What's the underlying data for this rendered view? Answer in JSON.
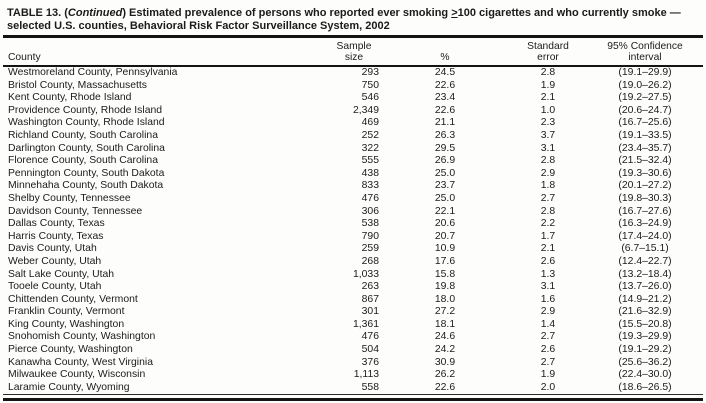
{
  "title": {
    "p1": "TABLE 13. (",
    "continued": "Continued",
    "p2": ") Estimated prevalence of persons who reported ever smoking ",
    "gte": ">",
    "p3": "100 cigarettes and who currently smoke —",
    "line2": "selected U.S. counties, Behavioral Risk Factor Surveillance System, 2002"
  },
  "table": {
    "headers": {
      "county": "County",
      "sample": [
        "Sample",
        "size"
      ],
      "pct": "%",
      "se": [
        "Standard",
        "error"
      ],
      "ci": [
        "95% Confidence",
        "interval"
      ]
    },
    "rows": [
      {
        "county": "Westmoreland County, Pennsylvania",
        "n": "293",
        "pct": "24.5",
        "se": "2.8",
        "ci": "(19.1–29.9)"
      },
      {
        "county": "Bristol County, Massachusetts",
        "n": "750",
        "pct": "22.6",
        "se": "1.9",
        "ci": "(19.0–26.2)"
      },
      {
        "county": "Kent County, Rhode Island",
        "n": "546",
        "pct": "23.4",
        "se": "2.1",
        "ci": "(19.2–27.5)"
      },
      {
        "county": "Providence County, Rhode Island",
        "n": "2,349",
        "pct": "22.6",
        "se": "1.0",
        "ci": "(20.6–24.7)"
      },
      {
        "county": "Washington County, Rhode Island",
        "n": "469",
        "pct": "21.1",
        "se": "2.3",
        "ci": "(16.7–25.6)"
      },
      {
        "county": "Richland County, South Carolina",
        "n": "252",
        "pct": "26.3",
        "se": "3.7",
        "ci": "(19.1–33.5)"
      },
      {
        "county": "Darlington County, South Carolina",
        "n": "322",
        "pct": "29.5",
        "se": "3.1",
        "ci": "(23.4–35.7)"
      },
      {
        "county": "Florence County, South Carolina",
        "n": "555",
        "pct": "26.9",
        "se": "2.8",
        "ci": "(21.5–32.4)"
      },
      {
        "county": "Pennington County, South Dakota",
        "n": "438",
        "pct": "25.0",
        "se": "2.9",
        "ci": "(19.3–30.6)"
      },
      {
        "county": "Minnehaha County, South Dakota",
        "n": "833",
        "pct": "23.7",
        "se": "1.8",
        "ci": "(20.1–27.2)"
      },
      {
        "county": "Shelby County, Tennessee",
        "n": "476",
        "pct": "25.0",
        "se": "2.7",
        "ci": "(19.8–30.3)"
      },
      {
        "county": "Davidson County, Tennessee",
        "n": "306",
        "pct": "22.1",
        "se": "2.8",
        "ci": "(16.7–27.6)"
      },
      {
        "county": "Dallas County, Texas",
        "n": "538",
        "pct": "20.6",
        "se": "2.2",
        "ci": "(16.3–24.9)"
      },
      {
        "county": "Harris County, Texas",
        "n": "790",
        "pct": "20.7",
        "se": "1.7",
        "ci": "(17.4–24.0)"
      },
      {
        "county": "Davis County, Utah",
        "n": "259",
        "pct": "10.9",
        "se": "2.1",
        "ci": "(6.7–15.1)"
      },
      {
        "county": "Weber County, Utah",
        "n": "268",
        "pct": "17.6",
        "se": "2.6",
        "ci": "(12.4–22.7)"
      },
      {
        "county": "Salt Lake County, Utah",
        "n": "1,033",
        "pct": "15.8",
        "se": "1.3",
        "ci": "(13.2–18.4)"
      },
      {
        "county": "Tooele County, Utah",
        "n": "263",
        "pct": "19.8",
        "se": "3.1",
        "ci": "(13.7–26.0)"
      },
      {
        "county": "Chittenden County, Vermont",
        "n": "867",
        "pct": "18.0",
        "se": "1.6",
        "ci": "(14.9–21.2)"
      },
      {
        "county": "Franklin County, Vermont",
        "n": "301",
        "pct": "27.2",
        "se": "2.9",
        "ci": "(21.6–32.9)"
      },
      {
        "county": "King County, Washington",
        "n": "1,361",
        "pct": "18.1",
        "se": "1.4",
        "ci": "(15.5–20.8)"
      },
      {
        "county": "Snohomish County, Washington",
        "n": "476",
        "pct": "24.6",
        "se": "2.7",
        "ci": "(19.3–29.9)"
      },
      {
        "county": "Pierce County, Washington",
        "n": "504",
        "pct": "24.2",
        "se": "2.6",
        "ci": "(19.1–29.2)"
      },
      {
        "county": "Kanawha County, West Virginia",
        "n": "376",
        "pct": "30.9",
        "se": "2.7",
        "ci": "(25.6–36.2)"
      },
      {
        "county": "Milwaukee County, Wisconsin",
        "n": "1,113",
        "pct": "26.2",
        "se": "1.9",
        "ci": "(22.4–30.0)"
      },
      {
        "county": "Laramie County, Wyoming",
        "n": "558",
        "pct": "22.6",
        "se": "2.0",
        "ci": "(18.6–26.5)"
      }
    ]
  }
}
